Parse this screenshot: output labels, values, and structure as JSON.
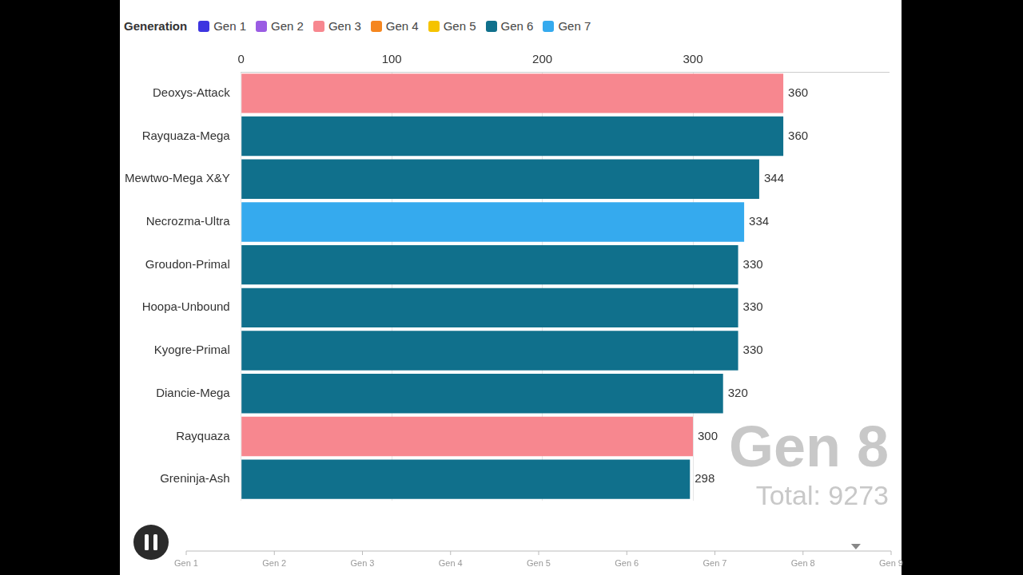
{
  "chart_data": {
    "type": "bar",
    "orientation": "horizontal",
    "stacked": true,
    "data_labels": true,
    "grid": true,
    "legend": "top-left",
    "legend_title": "Generation",
    "categories": [
      "Deoxys-Attack",
      "Rayquaza-Mega",
      "Mewtwo-Mega X&Y",
      "Necrozma-Ultra",
      "Groudon-Primal",
      "Hoopa-Unbound",
      "Kyogre-Primal",
      "Diancie-Mega",
      "Rayquaza",
      "Greninja-Ash"
    ],
    "series": [
      {
        "name": "Gen 1",
        "color": "#3d35e0",
        "values": [
          null,
          null,
          null,
          null,
          null,
          null,
          null,
          null,
          null,
          null
        ]
      },
      {
        "name": "Gen 2",
        "color": "#9a5ce3",
        "values": [
          null,
          null,
          null,
          null,
          null,
          null,
          null,
          null,
          null,
          null
        ]
      },
      {
        "name": "Gen 3",
        "color": "#f7878f",
        "values": [
          360,
          null,
          null,
          null,
          null,
          null,
          null,
          null,
          300,
          null
        ]
      },
      {
        "name": "Gen 4",
        "color": "#f5861f",
        "values": [
          null,
          null,
          null,
          null,
          null,
          null,
          null,
          null,
          null,
          null
        ]
      },
      {
        "name": "Gen 5",
        "color": "#f5c300",
        "values": [
          null,
          null,
          null,
          null,
          null,
          null,
          null,
          null,
          null,
          null
        ]
      },
      {
        "name": "Gen 6",
        "color": "#10708c",
        "values": [
          null,
          360,
          344,
          null,
          330,
          330,
          330,
          320,
          null,
          298
        ]
      },
      {
        "name": "Gen 7",
        "color": "#35aaee",
        "values": [
          null,
          null,
          null,
          334,
          null,
          null,
          null,
          null,
          null,
          null
        ]
      }
    ],
    "xlim": [
      0,
      430
    ],
    "xticks": [
      0,
      100,
      200,
      300
    ],
    "annotations": [
      {
        "text": "Gen 8"
      },
      {
        "text": "Total: 9273"
      }
    ],
    "timeline": {
      "categories": [
        "Gen 1",
        "Gen 2",
        "Gen 3",
        "Gen 4",
        "Gen 5",
        "Gen 6",
        "Gen 7",
        "Gen 8",
        "Gen 9"
      ],
      "value": 8.6
    }
  }
}
